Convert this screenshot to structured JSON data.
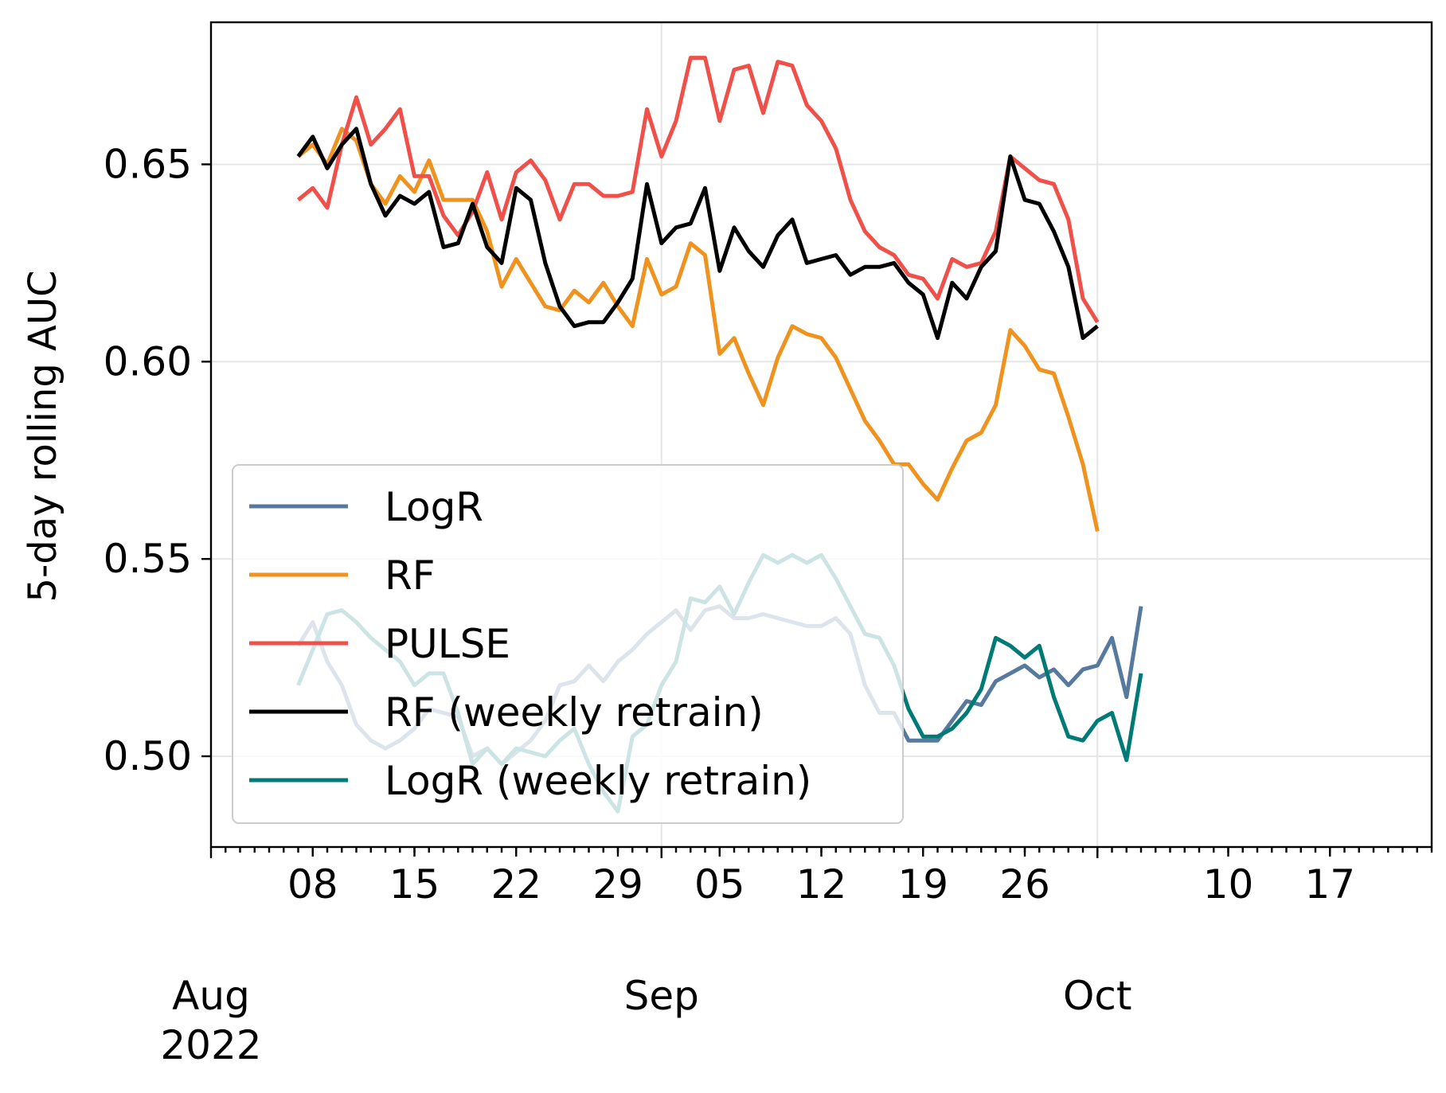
{
  "chart_data": {
    "type": "line",
    "ylabel": "5-day rolling AUC",
    "xlabel": "",
    "x_start": "2022-08-01",
    "x_end": "2022-10-25",
    "series_start_day": 6,
    "ylim": [
      0.477,
      0.686
    ],
    "yticks": [
      0.5,
      0.55,
      0.6,
      0.65
    ],
    "ytick_labels": [
      "0.50",
      "0.55",
      "0.60",
      "0.65"
    ],
    "x_minor_tick_days": [
      1,
      2,
      3,
      4,
      5,
      6,
      7,
      8,
      9,
      10,
      11,
      12,
      13,
      14,
      15,
      16,
      17,
      18,
      19,
      20,
      21,
      22,
      23,
      24,
      25,
      26,
      27,
      28,
      29,
      30,
      31,
      32,
      33,
      34,
      35,
      36,
      37,
      38,
      39,
      40,
      41,
      42,
      43,
      44,
      45,
      46,
      47,
      48,
      49,
      50,
      51,
      52,
      53,
      54,
      55,
      56,
      57,
      58,
      59,
      60,
      61,
      62,
      63,
      64,
      65,
      66,
      67,
      68,
      69,
      70,
      71,
      72,
      73,
      74,
      75,
      76,
      77,
      78,
      79,
      80,
      81,
      82,
      83,
      84
    ],
    "x_day_ticks": [
      {
        "day": 7,
        "label": "08"
      },
      {
        "day": 14,
        "label": "15"
      },
      {
        "day": 21,
        "label": "22"
      },
      {
        "day": 28,
        "label": "29"
      },
      {
        "day": 35,
        "label": "05"
      },
      {
        "day": 42,
        "label": "12"
      },
      {
        "day": 49,
        "label": "19"
      },
      {
        "day": 56,
        "label": "26"
      },
      {
        "day": 70,
        "label": "10"
      },
      {
        "day": 77,
        "label": "17"
      }
    ],
    "x_month_ticks": [
      {
        "day": 0,
        "label": "Aug",
        "year": "2022"
      },
      {
        "day": 31,
        "label": "Sep",
        "year": ""
      },
      {
        "day": 61,
        "label": "Oct",
        "year": ""
      }
    ],
    "legend_location": "lower-left",
    "grid": true,
    "series": [
      {
        "name": "LogR",
        "color": "#56799e",
        "values": [
          0.528,
          0.534,
          0.524,
          0.518,
          0.508,
          0.504,
          0.502,
          0.504,
          0.507,
          0.512,
          0.511,
          0.51,
          0.5,
          0.502,
          0.498,
          0.501,
          0.504,
          0.509,
          0.518,
          0.519,
          0.523,
          0.519,
          0.524,
          0.527,
          0.531,
          0.534,
          0.537,
          0.532,
          0.537,
          0.538,
          0.535,
          0.535,
          0.536,
          0.535,
          0.534,
          0.533,
          0.533,
          0.535,
          0.531,
          0.518,
          0.511,
          0.511,
          0.504,
          0.504,
          0.504,
          0.509,
          0.514,
          0.513,
          0.519,
          0.521,
          0.523,
          0.52,
          0.522,
          0.518,
          0.522,
          0.523,
          0.53,
          0.515,
          0.538
        ]
      },
      {
        "name": "RF",
        "color": "#f0921e",
        "values": [
          0.652,
          0.655,
          0.65,
          0.659,
          0.656,
          0.645,
          0.64,
          0.647,
          0.643,
          0.651,
          0.641,
          0.641,
          0.641,
          0.633,
          0.619,
          0.626,
          0.62,
          0.614,
          0.613,
          0.618,
          0.615,
          0.62,
          0.614,
          0.609,
          0.626,
          0.617,
          0.619,
          0.63,
          0.627,
          0.602,
          0.606,
          0.597,
          0.589,
          0.601,
          0.609,
          0.607,
          0.606,
          0.601,
          0.593,
          0.585,
          0.58,
          0.574,
          0.574,
          0.569,
          0.565,
          0.573,
          0.58,
          0.582,
          0.589,
          0.608,
          0.604,
          0.598,
          0.597,
          0.586,
          0.574,
          0.557
        ]
      },
      {
        "name": "PULSE",
        "color": "#ef5049",
        "values": [
          0.641,
          0.644,
          0.639,
          0.655,
          0.667,
          0.655,
          0.659,
          0.664,
          0.647,
          0.647,
          0.637,
          0.632,
          0.638,
          0.648,
          0.636,
          0.648,
          0.651,
          0.646,
          0.636,
          0.645,
          0.645,
          0.642,
          0.642,
          0.643,
          0.664,
          0.652,
          0.661,
          0.677,
          0.677,
          0.661,
          0.674,
          0.675,
          0.663,
          0.676,
          0.675,
          0.665,
          0.661,
          0.654,
          0.641,
          0.633,
          0.629,
          0.627,
          0.622,
          0.621,
          0.616,
          0.626,
          0.624,
          0.625,
          0.633,
          0.652,
          0.649,
          0.646,
          0.645,
          0.636,
          0.616,
          0.61
        ]
      },
      {
        "name": "RF (weekly retrain)",
        "color": "#000000",
        "values": [
          0.652,
          0.657,
          0.649,
          0.655,
          0.659,
          0.645,
          0.637,
          0.642,
          0.64,
          0.643,
          0.629,
          0.63,
          0.64,
          0.629,
          0.625,
          0.644,
          0.641,
          0.625,
          0.614,
          0.609,
          0.61,
          0.61,
          0.615,
          0.621,
          0.645,
          0.63,
          0.634,
          0.635,
          0.644,
          0.623,
          0.634,
          0.628,
          0.624,
          0.632,
          0.636,
          0.625,
          0.626,
          0.627,
          0.622,
          0.624,
          0.624,
          0.625,
          0.62,
          0.617,
          0.606,
          0.62,
          0.616,
          0.624,
          0.628,
          0.652,
          0.641,
          0.64,
          0.633,
          0.624,
          0.606,
          0.609
        ]
      },
      {
        "name": "LogR (weekly retrain)",
        "color": "#007a76",
        "values": [
          0.518,
          0.527,
          0.536,
          0.537,
          0.534,
          0.53,
          0.527,
          0.524,
          0.518,
          0.521,
          0.521,
          0.511,
          0.498,
          0.502,
          0.498,
          0.502,
          0.501,
          0.5,
          0.504,
          0.507,
          0.498,
          0.491,
          0.486,
          0.505,
          0.508,
          0.518,
          0.524,
          0.54,
          0.539,
          0.543,
          0.536,
          0.544,
          0.551,
          0.549,
          0.551,
          0.549,
          0.551,
          0.545,
          0.538,
          0.531,
          0.53,
          0.523,
          0.512,
          0.505,
          0.505,
          0.507,
          0.511,
          0.517,
          0.53,
          0.528,
          0.525,
          0.528,
          0.515,
          0.505,
          0.504,
          0.509,
          0.511,
          0.499,
          0.521
        ]
      }
    ]
  }
}
